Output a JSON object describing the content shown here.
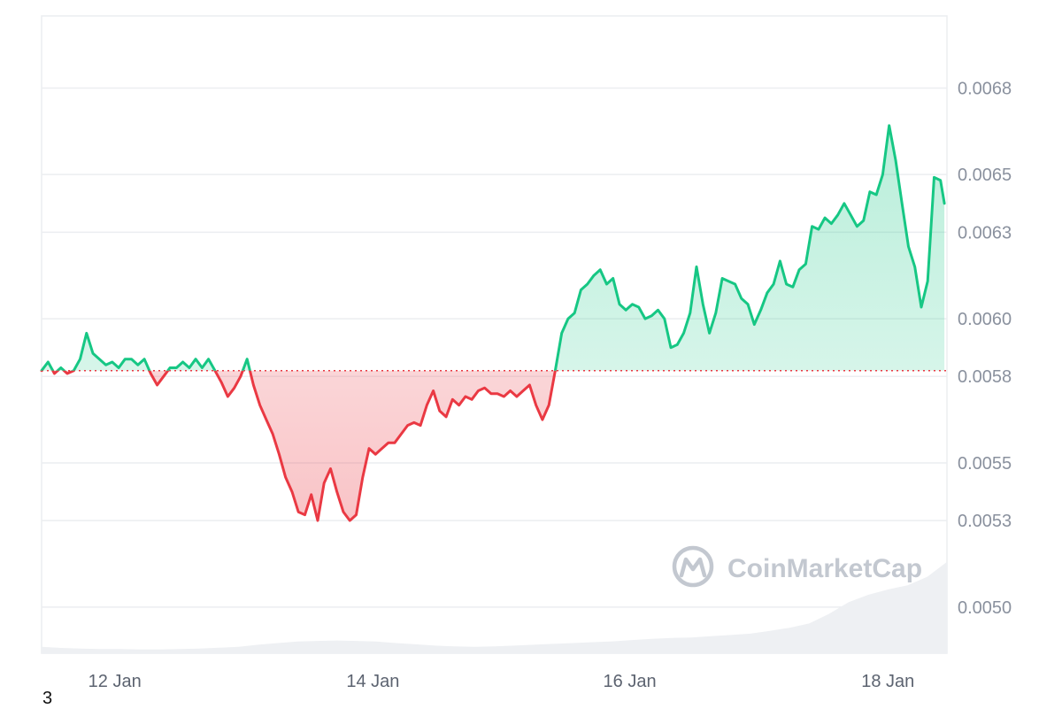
{
  "watermark": "CoinMarketCap",
  "corner_label": "3",
  "colors": {
    "up": "#16c784",
    "down": "#ea3943",
    "up_fill": "#d4f4e5",
    "down_fill": "#f9d0d3",
    "grid": "#eceef1",
    "baseline": "#ea3943",
    "volume": "#eef0f3",
    "watermark": "#c3c8d0"
  },
  "chart_data": {
    "type": "area",
    "grid": true,
    "baseline": 0.00582,
    "ylim": [
      0.00484,
      0.00705
    ],
    "xlim": [
      0,
      7.05
    ],
    "yticks": [
      {
        "value": 0.0068,
        "label": "0.0068"
      },
      {
        "value": 0.0065,
        "label": "0.0065"
      },
      {
        "value": 0.0063,
        "label": "0.0063"
      },
      {
        "value": 0.006,
        "label": "0.0060"
      },
      {
        "value": 0.0058,
        "label": "0.0058"
      },
      {
        "value": 0.0055,
        "label": "0.0055"
      },
      {
        "value": 0.0053,
        "label": "0.0053"
      },
      {
        "value": 0.005,
        "label": "0.0050"
      }
    ],
    "xticks": [
      {
        "value": 0.57,
        "label": "12 Jan"
      },
      {
        "value": 2.58,
        "label": "14 Jan"
      },
      {
        "value": 4.58,
        "label": "16 Jan"
      },
      {
        "value": 6.59,
        "label": "18 Jan"
      }
    ],
    "series": [
      {
        "x": [
          0.0,
          0.05,
          0.1,
          0.15,
          0.2,
          0.25,
          0.3,
          0.35,
          0.4,
          0.45,
          0.5,
          0.55,
          0.6,
          0.65,
          0.7,
          0.75,
          0.8,
          0.85,
          0.9,
          0.95,
          1.0,
          1.05,
          1.1,
          1.15,
          1.2,
          1.25,
          1.3,
          1.35,
          1.4,
          1.45,
          1.5,
          1.55,
          1.6,
          1.65,
          1.7,
          1.75,
          1.8,
          1.85,
          1.9,
          1.95,
          2.0,
          2.05,
          2.1,
          2.15,
          2.2,
          2.25,
          2.3,
          2.35,
          2.4,
          2.45,
          2.5,
          2.55,
          2.6,
          2.65,
          2.7,
          2.75,
          2.8,
          2.85,
          2.9,
          2.95,
          3.0,
          3.05,
          3.1,
          3.15,
          3.2,
          3.25,
          3.3,
          3.35,
          3.4,
          3.45,
          3.5,
          3.55,
          3.6,
          3.65,
          3.7,
          3.75,
          3.8,
          3.85,
          3.9,
          3.95,
          4.0,
          4.05,
          4.1,
          4.15,
          4.2,
          4.25,
          4.3,
          4.35,
          4.4,
          4.45,
          4.5,
          4.55,
          4.6,
          4.65,
          4.7,
          4.75,
          4.8,
          4.85,
          4.9,
          4.95,
          5.0,
          5.05,
          5.1,
          5.15,
          5.2,
          5.25,
          5.3,
          5.35,
          5.4,
          5.45,
          5.5,
          5.55,
          5.6,
          5.65,
          5.7,
          5.75,
          5.8,
          5.85,
          5.9,
          5.95,
          6.0,
          6.05,
          6.1,
          6.15,
          6.2,
          6.25,
          6.3,
          6.35,
          6.4,
          6.45,
          6.5,
          6.55,
          6.6,
          6.65,
          6.7,
          6.75,
          6.8,
          6.85,
          6.9,
          6.95,
          7.0,
          7.03
        ],
        "y": [
          0.00582,
          0.00585,
          0.00581,
          0.00583,
          0.00581,
          0.00582,
          0.00586,
          0.00595,
          0.00588,
          0.00586,
          0.00584,
          0.00585,
          0.00583,
          0.00586,
          0.00586,
          0.00584,
          0.00586,
          0.00581,
          0.00577,
          0.0058,
          0.00583,
          0.00583,
          0.00585,
          0.00583,
          0.00586,
          0.00583,
          0.00586,
          0.00582,
          0.00578,
          0.00573,
          0.00576,
          0.0058,
          0.00586,
          0.00577,
          0.0057,
          0.00565,
          0.0056,
          0.00553,
          0.00545,
          0.0054,
          0.00533,
          0.00532,
          0.00539,
          0.0053,
          0.00543,
          0.00548,
          0.0054,
          0.00533,
          0.0053,
          0.00532,
          0.00545,
          0.00555,
          0.00553,
          0.00555,
          0.00557,
          0.00557,
          0.0056,
          0.00563,
          0.00564,
          0.00563,
          0.0057,
          0.00575,
          0.00568,
          0.00566,
          0.00572,
          0.0057,
          0.00573,
          0.00572,
          0.00575,
          0.00576,
          0.00574,
          0.00574,
          0.00573,
          0.00575,
          0.00573,
          0.00575,
          0.00577,
          0.0057,
          0.00565,
          0.0057,
          0.00582,
          0.00595,
          0.006,
          0.00602,
          0.0061,
          0.00612,
          0.00615,
          0.00617,
          0.00612,
          0.00614,
          0.00605,
          0.00603,
          0.00605,
          0.00604,
          0.006,
          0.00601,
          0.00603,
          0.006,
          0.0059,
          0.00591,
          0.00595,
          0.00602,
          0.00618,
          0.00605,
          0.00595,
          0.00602,
          0.00614,
          0.00613,
          0.00612,
          0.00607,
          0.00605,
          0.00598,
          0.00603,
          0.00609,
          0.00612,
          0.0062,
          0.00612,
          0.00611,
          0.00617,
          0.00619,
          0.00632,
          0.00631,
          0.00635,
          0.00633,
          0.00636,
          0.0064,
          0.00636,
          0.00632,
          0.00634,
          0.00644,
          0.00643,
          0.0065,
          0.00667,
          0.00655,
          0.0064,
          0.00625,
          0.00618,
          0.00604,
          0.00613,
          0.00649,
          0.00648,
          0.0064
        ]
      }
    ],
    "volume_profile": [
      0.3,
      0.25,
      0.22,
      0.2,
      0.2,
      0.18,
      0.18,
      0.2,
      0.22,
      0.26,
      0.3,
      0.4,
      0.48,
      0.55,
      0.58,
      0.6,
      0.58,
      0.55,
      0.48,
      0.42,
      0.36,
      0.32,
      0.3,
      0.32,
      0.36,
      0.4,
      0.44,
      0.48,
      0.52,
      0.56,
      0.62,
      0.68,
      0.72,
      0.74,
      0.8,
      0.86,
      0.92,
      1.05,
      1.2,
      1.4,
      1.85,
      2.4,
      2.75,
      3.0,
      3.2,
      3.6,
      4.3
    ]
  }
}
